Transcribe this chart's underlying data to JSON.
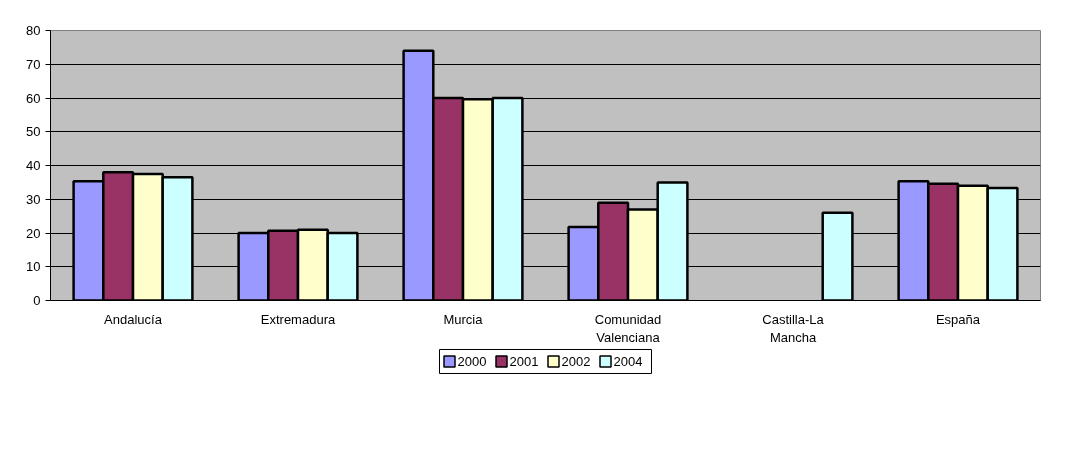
{
  "chart_data": {
    "type": "bar",
    "categories": [
      "Andalucía",
      "Extremadura",
      "Murcia",
      "Comunidad\nValenciana",
      "Castilla-La\nMancha",
      "España"
    ],
    "series": [
      {
        "name": "2000",
        "color": "#9999ff",
        "values": [
          35.3,
          20,
          74,
          21.8,
          null,
          35.3
        ]
      },
      {
        "name": "2001",
        "color": "#993366",
        "values": [
          38,
          20.7,
          60,
          29,
          null,
          34.6
        ]
      },
      {
        "name": "2002",
        "color": "#ffffcc",
        "values": [
          37.5,
          21,
          59.6,
          27,
          null,
          34
        ]
      },
      {
        "name": "2004",
        "color": "#ccffff",
        "values": [
          36.5,
          20,
          60,
          35,
          26,
          33.3
        ]
      }
    ],
    "ylim": [
      0,
      80
    ],
    "yticks": [
      0,
      10,
      20,
      30,
      40,
      50,
      60,
      70,
      80
    ],
    "grid": "y",
    "legend": "bottom"
  }
}
